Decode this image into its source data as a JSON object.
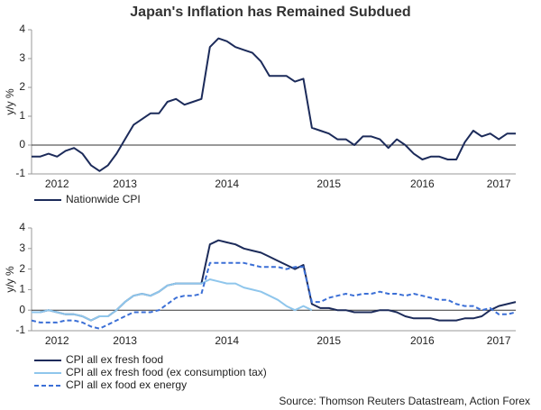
{
  "title": "Japan's Inflation has Remained Subdued",
  "source": "Source: Thomson Reuters Datastream, Action Forex",
  "chart_data": [
    {
      "type": "line",
      "ylabel": "y/y %",
      "categories": [
        null,
        null,
        null,
        "2012",
        null,
        null,
        null,
        null,
        null,
        null,
        null,
        "2013",
        null,
        null,
        null,
        null,
        null,
        null,
        null,
        null,
        null,
        null,
        null,
        "2014",
        null,
        null,
        null,
        null,
        null,
        null,
        null,
        null,
        null,
        null,
        null,
        "2015",
        null,
        null,
        null,
        null,
        null,
        null,
        null,
        null,
        null,
        null,
        "2016",
        null,
        null,
        null,
        null,
        null,
        null,
        null,
        null,
        "2017",
        null,
        null
      ],
      "series": [
        {
          "name": "Nationwide CPI",
          "color": "#1c2b5a",
          "dash": false,
          "values": [
            -0.4,
            -0.4,
            -0.3,
            -0.4,
            -0.2,
            -0.1,
            -0.3,
            -0.7,
            -0.9,
            -0.7,
            -0.3,
            0.2,
            0.7,
            0.9,
            1.1,
            1.1,
            1.5,
            1.6,
            1.4,
            1.5,
            1.6,
            3.4,
            3.7,
            3.6,
            3.4,
            3.3,
            3.2,
            2.9,
            2.4,
            2.4,
            2.4,
            2.2,
            2.3,
            0.6,
            0.5,
            0.4,
            0.2,
            0.2,
            0.0,
            0.3,
            0.3,
            0.2,
            -0.1,
            0.2,
            0.0,
            -0.3,
            -0.5,
            -0.4,
            -0.4,
            -0.5,
            -0.5,
            0.1,
            0.5,
            0.3,
            0.4,
            0.2,
            0.4,
            0.4
          ]
        }
      ],
      "ylim": [
        -1,
        4
      ],
      "yticks": [
        -1,
        0,
        1,
        2,
        3,
        4
      ]
    },
    {
      "type": "line",
      "ylabel": "y/y %",
      "categories": [
        null,
        null,
        null,
        "2012",
        null,
        null,
        null,
        null,
        null,
        null,
        null,
        "2013",
        null,
        null,
        null,
        null,
        null,
        null,
        null,
        null,
        null,
        null,
        null,
        "2014",
        null,
        null,
        null,
        null,
        null,
        null,
        null,
        null,
        null,
        null,
        null,
        "2015",
        null,
        null,
        null,
        null,
        null,
        null,
        null,
        null,
        null,
        null,
        "2016",
        null,
        null,
        null,
        null,
        null,
        null,
        null,
        null,
        "2017",
        null,
        null
      ],
      "series": [
        {
          "name": "CPI all ex fresh food",
          "color": "#1c2b5a",
          "dash": false,
          "values": [
            -0.1,
            -0.1,
            0.0,
            -0.1,
            -0.2,
            -0.2,
            -0.3,
            -0.5,
            -0.3,
            -0.3,
            0.0,
            0.4,
            0.7,
            0.8,
            0.7,
            0.9,
            1.2,
            1.3,
            1.3,
            1.3,
            1.3,
            3.2,
            3.4,
            3.3,
            3.2,
            3.0,
            2.9,
            2.8,
            2.6,
            2.4,
            2.2,
            2.0,
            2.2,
            0.3,
            0.1,
            0.1,
            0.0,
            0.0,
            -0.1,
            -0.1,
            -0.1,
            0.0,
            0.0,
            -0.1,
            -0.3,
            -0.4,
            -0.4,
            -0.4,
            -0.5,
            -0.5,
            -0.5,
            -0.4,
            -0.4,
            -0.3,
            0.0,
            0.2,
            0.3,
            0.4
          ]
        },
        {
          "name": "CPI all ex fresh food (ex consumption tax)",
          "color": "#8fc6ec",
          "dash": false,
          "values": [
            -0.1,
            -0.1,
            0.0,
            -0.1,
            -0.2,
            -0.2,
            -0.3,
            -0.5,
            -0.3,
            -0.3,
            0.0,
            0.4,
            0.7,
            0.8,
            0.7,
            0.9,
            1.2,
            1.3,
            1.3,
            1.3,
            1.3,
            1.5,
            1.4,
            1.3,
            1.3,
            1.1,
            1.0,
            0.9,
            0.7,
            0.5,
            0.2,
            0.0,
            0.2,
            0.0,
            null,
            null,
            null,
            null,
            null,
            null,
            null,
            null,
            null,
            null,
            null,
            null,
            null,
            null,
            null,
            null,
            null,
            null,
            null,
            null,
            null,
            null,
            null,
            null
          ]
        },
        {
          "name": "CPI all ex food ex energy",
          "color": "#3b6fd6",
          "dash": true,
          "values": [
            -0.5,
            -0.6,
            -0.6,
            -0.6,
            -0.5,
            -0.5,
            -0.6,
            -0.8,
            -0.9,
            -0.7,
            -0.5,
            -0.3,
            -0.1,
            -0.1,
            -0.1,
            0.0,
            0.3,
            0.6,
            0.7,
            0.7,
            0.8,
            2.3,
            2.3,
            2.3,
            2.3,
            2.3,
            2.2,
            2.1,
            2.1,
            2.1,
            2.0,
            2.1,
            2.1,
            0.4,
            0.4,
            0.6,
            0.7,
            0.8,
            0.7,
            0.8,
            0.8,
            0.9,
            0.8,
            0.8,
            0.7,
            0.8,
            0.7,
            0.6,
            0.5,
            0.5,
            0.3,
            0.2,
            0.2,
            0.0,
            0.1,
            -0.2,
            -0.2,
            -0.1
          ]
        }
      ],
      "ylim": [
        -1,
        4
      ],
      "yticks": [
        -1,
        0,
        1,
        2,
        3,
        4
      ]
    }
  ]
}
